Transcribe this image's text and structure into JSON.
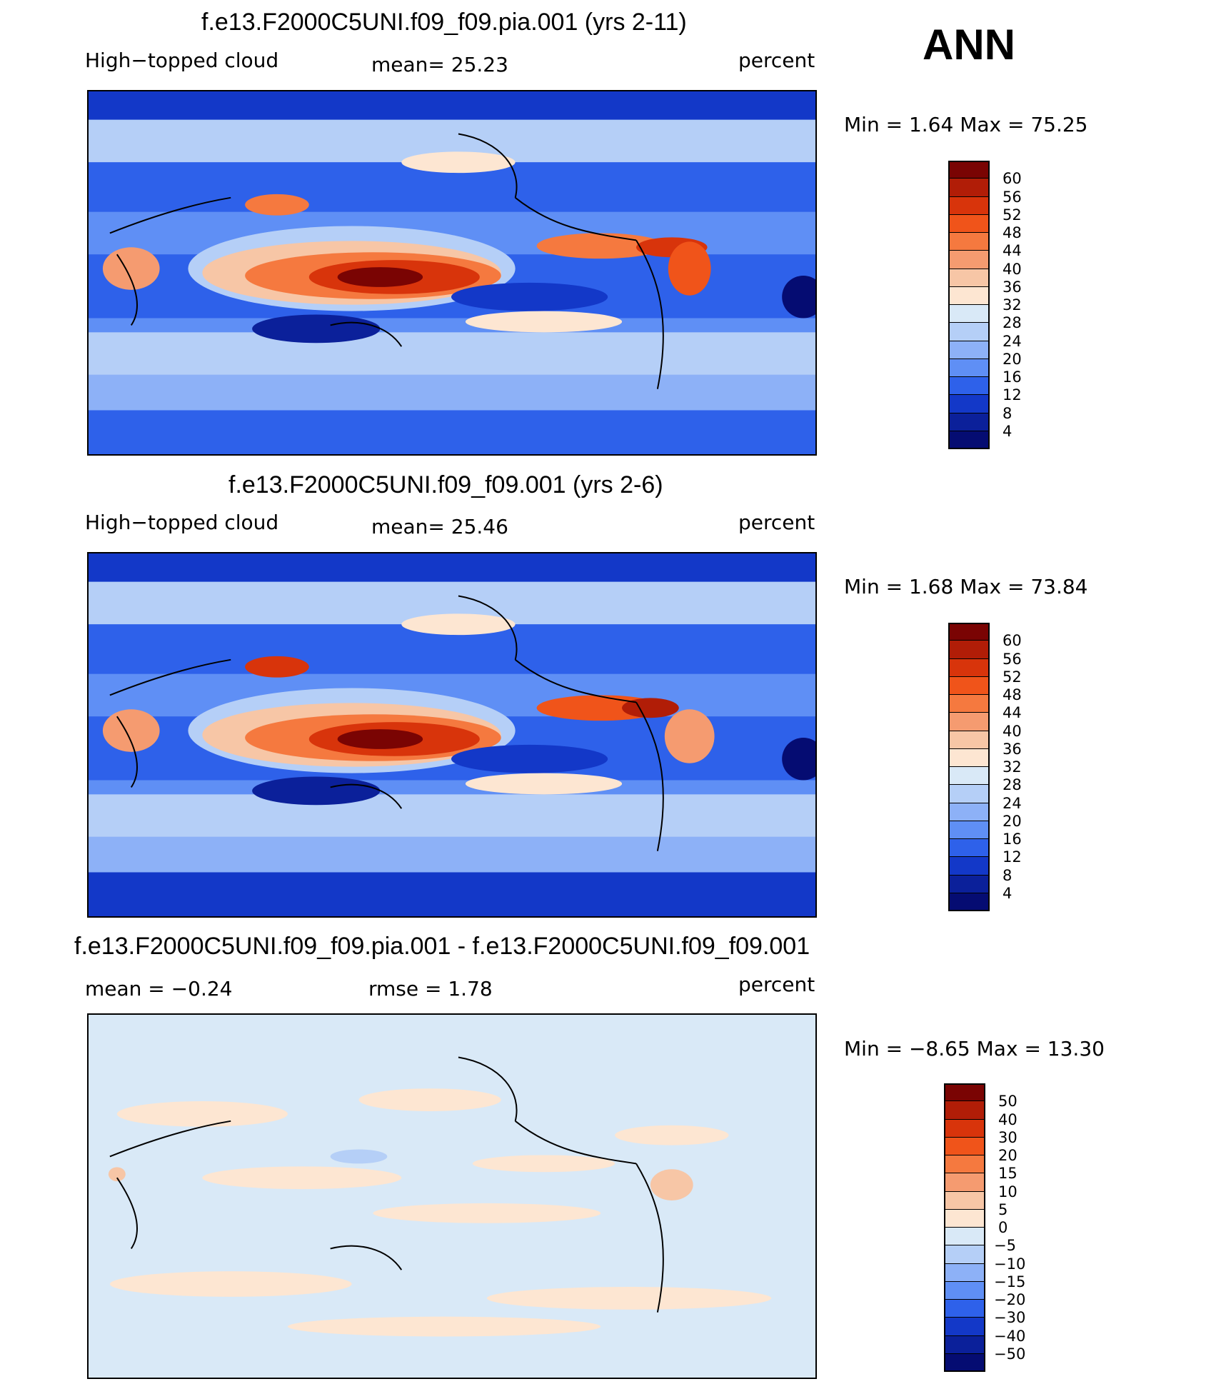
{
  "season": "ANN",
  "panels": [
    {
      "title": "f.e13.F2000C5UNI.f09_f09.pia.001 (yrs 2-11)",
      "left_label": "High−topped  cloud",
      "center_label": "mean=   25.23",
      "right_label": "percent",
      "stats": "Min =     1.64  Max =    75.25",
      "colorbar": {
        "labels": [
          "60",
          "56",
          "52",
          "48",
          "44",
          "40",
          "36",
          "32",
          "28",
          "24",
          "20",
          "16",
          "12",
          "8",
          "4"
        ],
        "colors": [
          "#7a0403",
          "#b11d07",
          "#d8340b",
          "#f0541a",
          "#f5793f",
          "#f59b70",
          "#f7c6a6",
          "#fde6d2",
          "#d9e9f7",
          "#b5cff7",
          "#8db1f7",
          "#5f8ff5",
          "#2e61ea",
          "#1338c8",
          "#0b209a",
          "#050c72"
        ]
      }
    },
    {
      "title": "f.e13.F2000C5UNI.f09_f09.001 (yrs 2-6)",
      "left_label": "High−topped  cloud",
      "center_label": "mean=   25.46",
      "right_label": "percent",
      "stats": "Min =     1.68  Max =    73.84",
      "colorbar": {
        "labels": [
          "60",
          "56",
          "52",
          "48",
          "44",
          "40",
          "36",
          "32",
          "28",
          "24",
          "20",
          "16",
          "12",
          "8",
          "4"
        ],
        "colors": [
          "#7a0403",
          "#b11d07",
          "#d8340b",
          "#f0541a",
          "#f5793f",
          "#f59b70",
          "#f7c6a6",
          "#fde6d2",
          "#d9e9f7",
          "#b5cff7",
          "#8db1f7",
          "#5f8ff5",
          "#2e61ea",
          "#1338c8",
          "#0b209a",
          "#050c72"
        ]
      }
    },
    {
      "title": "f.e13.F2000C5UNI.f09_f09.pia.001 - f.e13.F2000C5UNI.f09_f09.001",
      "left_label": "mean  =    −0.24",
      "center_label": "rmse  =      1.78",
      "right_label": "percent",
      "stats": "Min =    −8.65  Max =     13.30",
      "colorbar": {
        "labels": [
          "50",
          "40",
          "30",
          "20",
          "15",
          "10",
          "5",
          "0",
          "−5",
          "−10",
          "−15",
          "−20",
          "−30",
          "−40",
          "−50"
        ],
        "colors": [
          "#7a0403",
          "#b11d07",
          "#d8340b",
          "#f0541a",
          "#f5793f",
          "#f59b70",
          "#f7c6a6",
          "#fde6d2",
          "#d9e9f7",
          "#b5cff7",
          "#8db1f7",
          "#5f8ff5",
          "#2e61ea",
          "#1338c8",
          "#0b209a",
          "#050c72"
        ]
      }
    }
  ]
}
